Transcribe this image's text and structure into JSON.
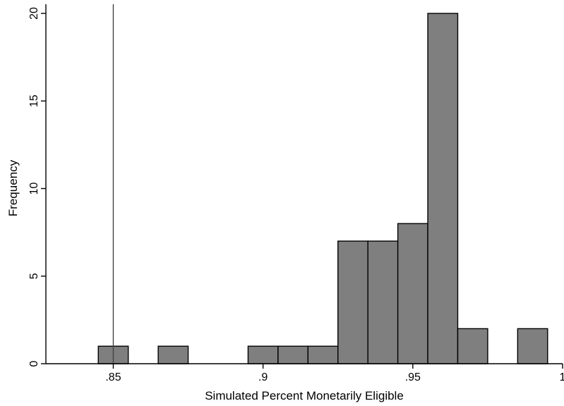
{
  "chart_data": {
    "type": "bar",
    "subtype": "histogram",
    "xlabel": "Simulated Percent Monetarily Eligible",
    "ylabel": "Frequency",
    "xlim": [
      0.8275,
      1.0
    ],
    "ylim": [
      0,
      20
    ],
    "bin_width": 0.01,
    "x_ticks": [
      {
        "value": 0.85,
        "label": ".85"
      },
      {
        "value": 0.9,
        "label": ".9"
      },
      {
        "value": 0.95,
        "label": ".95"
      },
      {
        "value": 1.0,
        "label": "1"
      }
    ],
    "y_ticks": [
      {
        "value": 0,
        "label": "0"
      },
      {
        "value": 5,
        "label": "5"
      },
      {
        "value": 10,
        "label": "10"
      },
      {
        "value": 15,
        "label": "15"
      },
      {
        "value": 20,
        "label": "20"
      }
    ],
    "bins": [
      {
        "x_start": 0.845,
        "x_end": 0.855,
        "count": 1
      },
      {
        "x_start": 0.865,
        "x_end": 0.875,
        "count": 1
      },
      {
        "x_start": 0.895,
        "x_end": 0.905,
        "count": 1
      },
      {
        "x_start": 0.905,
        "x_end": 0.915,
        "count": 1
      },
      {
        "x_start": 0.915,
        "x_end": 0.925,
        "count": 1
      },
      {
        "x_start": 0.925,
        "x_end": 0.935,
        "count": 7
      },
      {
        "x_start": 0.935,
        "x_end": 0.945,
        "count": 7
      },
      {
        "x_start": 0.945,
        "x_end": 0.955,
        "count": 8
      },
      {
        "x_start": 0.955,
        "x_end": 0.965,
        "count": 20
      },
      {
        "x_start": 0.965,
        "x_end": 0.975,
        "count": 2
      },
      {
        "x_start": 0.985,
        "x_end": 0.995,
        "count": 2
      }
    ],
    "reference_line_x": 0.85,
    "bar_color": "#7f7f7f",
    "bar_edge_color": "#000000",
    "grid": false,
    "legend": "none"
  }
}
